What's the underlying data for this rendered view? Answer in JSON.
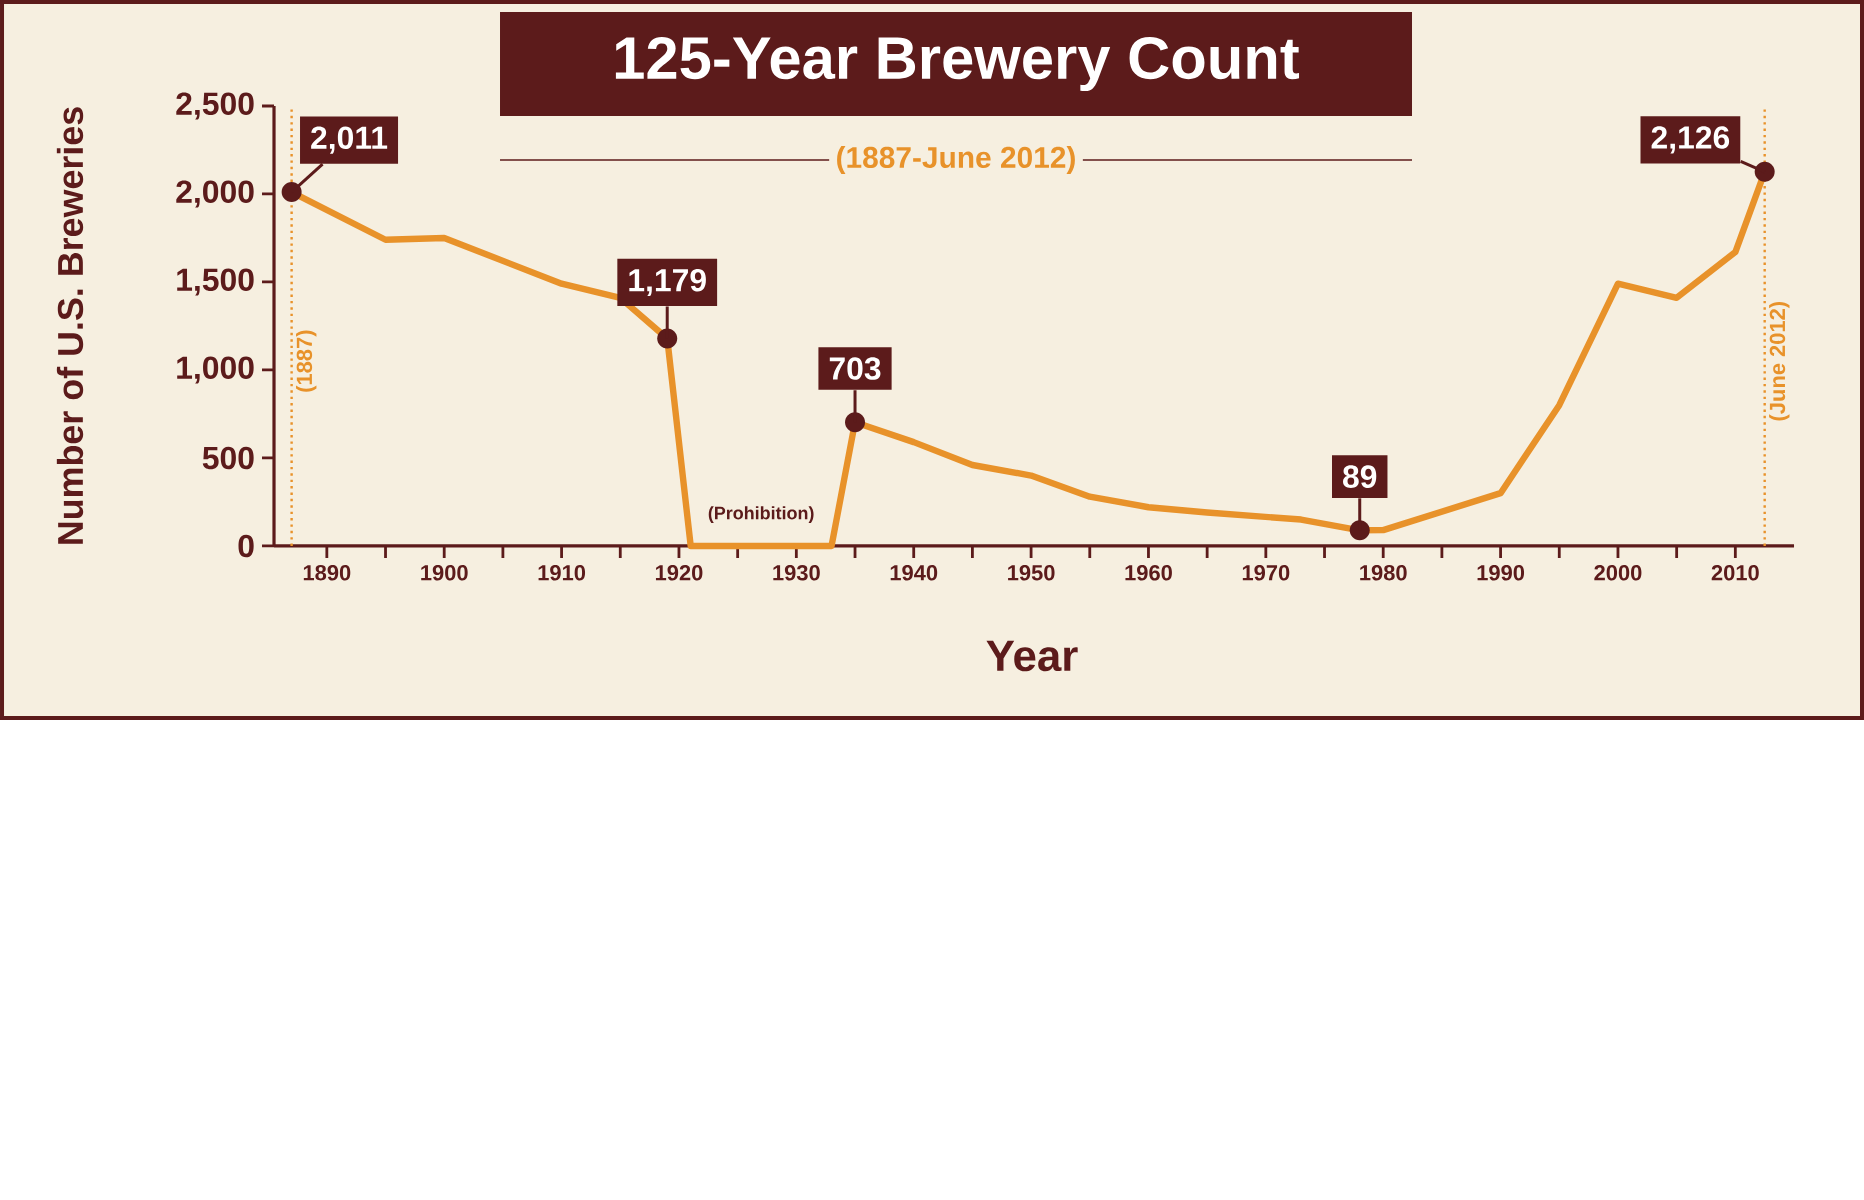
{
  "chart_data": {
    "type": "line",
    "title": "125-Year Brewery Count",
    "subtitle": "(1887-June 2012)",
    "xlabel": "Year",
    "ylabel": "Number of U.S. Breweries",
    "x": [
      1887,
      1895,
      1900,
      1910,
      1915,
      1919,
      1921,
      1933,
      1935,
      1940,
      1945,
      1950,
      1955,
      1960,
      1965,
      1973,
      1978,
      1980,
      1990,
      1995,
      2000,
      2005,
      2010,
      2012.5
    ],
    "values": [
      2011,
      1740,
      1750,
      1490,
      1410,
      1179,
      0,
      0,
      703,
      590,
      460,
      400,
      280,
      220,
      190,
      150,
      89,
      90,
      300,
      800,
      1490,
      1410,
      1670,
      2126
    ],
    "value_labels": [
      "2,011",
      null,
      null,
      null,
      null,
      "1,179",
      null,
      null,
      "703",
      null,
      null,
      null,
      null,
      null,
      null,
      null,
      "89",
      null,
      null,
      null,
      null,
      null,
      null,
      "2,126"
    ],
    "color": "#e8922a",
    "xlim": [
      1885.5,
      2015
    ],
    "ylim": [
      0,
      2500
    ],
    "xticks": [
      1890,
      {
        "value": 1895,
        "label": null
      },
      1900,
      {
        "value": 1905,
        "label": null
      },
      1910,
      {
        "value": 1915,
        "label": null
      },
      1920,
      {
        "value": 1925,
        "label": null
      },
      1930,
      {
        "value": 1935,
        "label": null
      },
      1940,
      {
        "value": 1945,
        "label": null
      },
      1950,
      {
        "value": 1955,
        "label": null
      },
      1960,
      {
        "value": 1965,
        "label": null
      },
      1970,
      {
        "value": 1975,
        "label": null
      },
      1980,
      {
        "value": 1985,
        "label": null
      },
      1990,
      {
        "value": 1995,
        "label": null
      },
      2000,
      {
        "value": 2005,
        "label": null
      },
      2010
    ],
    "yticks": [
      0,
      500,
      {
        "value": 1000,
        "label": "1,000"
      },
      {
        "value": 1500,
        "label": "1,500"
      },
      {
        "value": 2000,
        "label": "2,000"
      },
      {
        "value": 2500,
        "label": "2,500"
      }
    ],
    "ref_lines": [
      {
        "axis": "x",
        "value": 1887,
        "label": "(1887)",
        "color": "#e8922a",
        "line_style": "dotted"
      },
      {
        "axis": "x",
        "value": 2012.5,
        "label": "(June 2012)",
        "color": "#e8922a",
        "line_style": "dotted"
      }
    ],
    "annotations": [
      {
        "text": "(Prohibition)",
        "x": 1927,
        "y": 0
      }
    ],
    "grid": false
  }
}
